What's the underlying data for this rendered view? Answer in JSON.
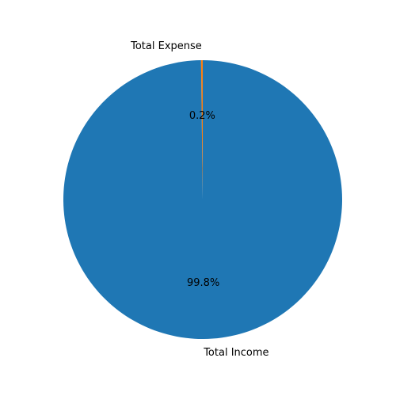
{
  "chart_data": {
    "type": "pie",
    "title": "",
    "categories": [
      "Total Expense",
      "Total Income"
    ],
    "values": [
      0.2,
      99.8
    ],
    "percent_labels": [
      "0.2%",
      "99.8%"
    ],
    "colors": [
      "#ff7f0e",
      "#1f77b4"
    ]
  }
}
